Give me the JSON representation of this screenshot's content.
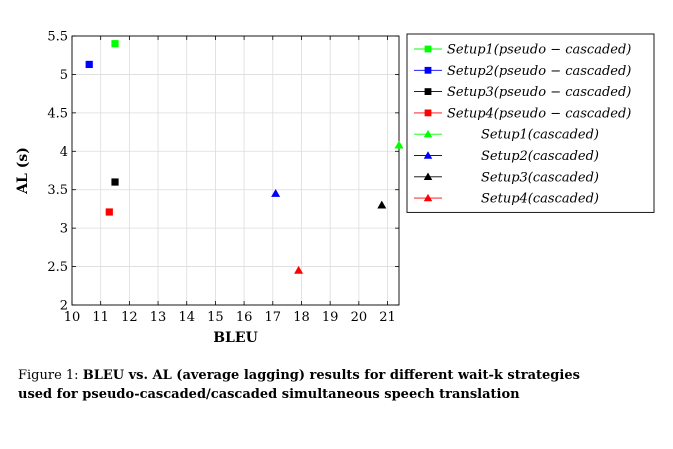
{
  "chart_data": {
    "type": "scatter",
    "xlabel": "BLEU",
    "ylabel": "AL (s)",
    "xlim": [
      10,
      21.4
    ],
    "ylim": [
      2,
      5.5
    ],
    "xticks": [
      10,
      11,
      12,
      13,
      14,
      15,
      16,
      17,
      18,
      19,
      20,
      21
    ],
    "yticks": [
      2,
      2.5,
      3,
      3.5,
      4,
      4.5,
      5,
      5.5
    ],
    "grid": true,
    "legend_position": "right",
    "series": [
      {
        "name": "Setup1(pseudo − cascaded)",
        "marker": "square",
        "color": "#00ff00",
        "x": 11.5,
        "y": 5.4
      },
      {
        "name": "Setup2(pseudo − cascaded)",
        "marker": "square",
        "color": "#0000ff",
        "x": 10.6,
        "y": 5.13
      },
      {
        "name": "Setup3(pseudo − cascaded)",
        "marker": "square",
        "color": "#000000",
        "x": 11.5,
        "y": 3.6
      },
      {
        "name": "Setup4(pseudo − cascaded)",
        "marker": "square",
        "color": "#ff0000",
        "x": 11.3,
        "y": 3.21
      },
      {
        "name": "Setup1(cascaded)",
        "marker": "triangle",
        "color": "#00ff00",
        "x": 21.4,
        "y": 4.08
      },
      {
        "name": "Setup2(cascaded)",
        "marker": "triangle",
        "color": "#0000ff",
        "x": 17.1,
        "y": 3.45
      },
      {
        "name": "Setup3(cascaded)",
        "marker": "triangle",
        "color": "#000000",
        "x": 20.8,
        "y": 3.3
      },
      {
        "name": "Setup4(cascaded)",
        "marker": "triangle",
        "color": "#ff0000",
        "x": 17.9,
        "y": 2.45
      }
    ]
  },
  "caption": {
    "label": "Figure 1:",
    "text": "BLEU vs. AL (average lagging) results for different wait-k strategies used for pseudo-cascaded/cascaded simultaneous speech translation"
  }
}
